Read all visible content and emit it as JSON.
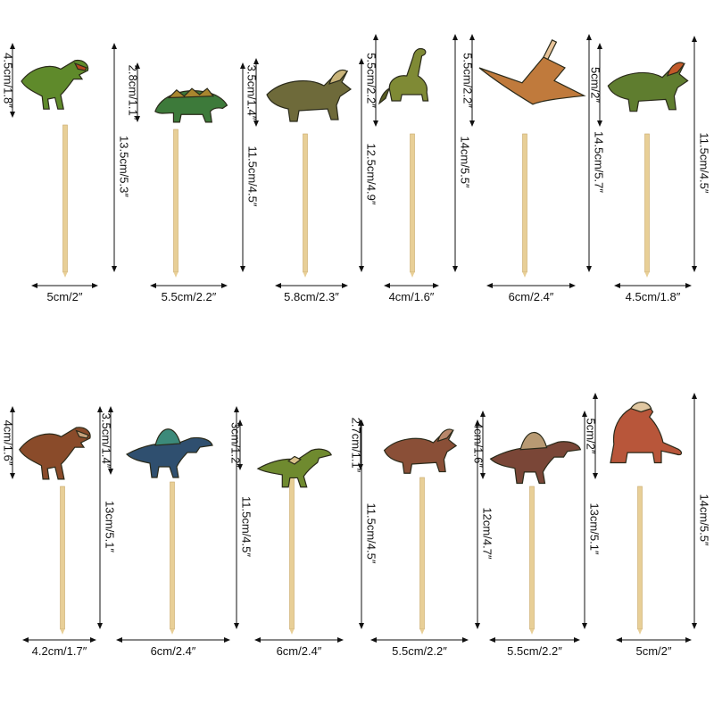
{
  "rows": [
    {
      "toppers": [
        {
          "name": "t-rex",
          "figure_label": "4.5cm/1.8″",
          "stick_label": "13.5cm/5.3″",
          "width_label": "5cm/2″",
          "body": "#5f8a2b",
          "accent": "#b3471f"
        },
        {
          "name": "ankylosaurus",
          "figure_label": "2.8cm/1.1″",
          "stick_label": "11.5cm/4.5″",
          "width_label": "5.5cm/2.2″",
          "body": "#3d7a3a",
          "accent": "#a9862e"
        },
        {
          "name": "triceratops",
          "figure_label": "3.5cm/1.4″",
          "stick_label": "12.5cm/4.9″",
          "width_label": "5.8cm/2.3″",
          "body": "#6e6a3a",
          "accent": "#c9b47a"
        },
        {
          "name": "brachiosaurus",
          "figure_label": "5.5cm/2.2″",
          "stick_label": "14cm/5.5″",
          "width_label": "4cm/1.6″",
          "body": "#7f8a35",
          "accent": "#5b5f24"
        },
        {
          "name": "pteranodon",
          "figure_label": "5.5cm/2.2″",
          "stick_label": "14.5cm/5.7″",
          "width_label": "6cm/2.4″",
          "body": "#c07a3c",
          "accent": "#e8c49a"
        },
        {
          "name": "triceratops-head",
          "figure_label": "5cm/2″",
          "stick_label": "11.5cm/4.5″",
          "width_label": "4.5cm/1.8″",
          "body": "#5f7d2f",
          "accent": "#c25a2a"
        }
      ]
    },
    {
      "toppers": [
        {
          "name": "tyrannosaurus",
          "figure_label": "4cm/1.6″",
          "stick_label": "13cm/5.1″",
          "width_label": "4.2cm/1.7″",
          "body": "#8a4b2a",
          "accent": "#c7a27b"
        },
        {
          "name": "spinosaurus",
          "figure_label": "3.5cm/1.4″",
          "stick_label": "11.5cm/4.5″",
          "width_label": "6cm/2.4″",
          "body": "#2f4f6f",
          "accent": "#3c8a7a"
        },
        {
          "name": "raptor",
          "figure_label": "3cm/1.2″",
          "stick_label": "11.5cm/4.5″",
          "width_label": "6cm/2.4″",
          "body": "#6f8a2f",
          "accent": "#d9c28a"
        },
        {
          "name": "triceratops-brown",
          "figure_label": "2.7cm/1.1″",
          "stick_label": "12cm/4.7″",
          "width_label": "5.5cm/2.2″",
          "body": "#8a4f37",
          "accent": "#b8876a"
        },
        {
          "name": "spinosaurus-red",
          "figure_label": "4cm/1.6″",
          "stick_label": "13cm/5.1″",
          "width_label": "5.5cm/2.2″",
          "body": "#7a4637",
          "accent": "#b89a73"
        },
        {
          "name": "feathered",
          "figure_label": "5cm/2″",
          "stick_label": "14cm/5.5″",
          "width_label": "5cm/2″",
          "body": "#b8563a",
          "accent": "#e0c7a1"
        }
      ]
    }
  ],
  "colors": {
    "stick": "#e8cf97",
    "stick_edge": "#c9a869",
    "line": "#111111"
  }
}
